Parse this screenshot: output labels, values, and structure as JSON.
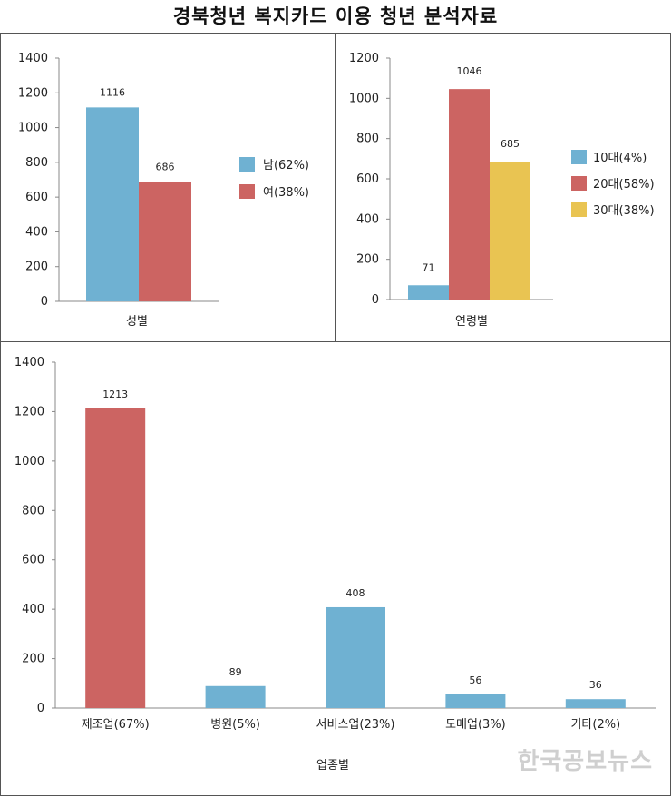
{
  "title": "경북청년 복지카드 이용 청년 분석자료",
  "watermark": "한국공보뉴스",
  "colors": {
    "blue": "#6fb1d2",
    "red": "#cc6462",
    "yellow": "#e9c452",
    "axis": "#888888"
  },
  "chart_data": [
    {
      "type": "bar",
      "xlabel": "성별",
      "ylim": [
        0,
        1400
      ],
      "yticks": [
        0,
        200,
        400,
        600,
        800,
        1000,
        1200,
        1400
      ],
      "series": [
        {
          "name": "남(62%)",
          "values": [
            1116
          ],
          "color": "#6fb1d2"
        },
        {
          "name": "여(38%)",
          "values": [
            686
          ],
          "color": "#cc6462"
        }
      ],
      "legend": "right"
    },
    {
      "type": "bar",
      "xlabel": "연령별",
      "ylim": [
        0,
        1200
      ],
      "yticks": [
        0,
        200,
        400,
        600,
        800,
        1000,
        1200
      ],
      "series": [
        {
          "name": "10대(4%)",
          "values": [
            71
          ],
          "color": "#6fb1d2"
        },
        {
          "name": "20대(58%)",
          "values": [
            1046
          ],
          "color": "#cc6462"
        },
        {
          "name": "30대(38%)",
          "values": [
            685
          ],
          "color": "#e9c452"
        }
      ],
      "legend": "right"
    },
    {
      "type": "bar",
      "xlabel": "업종별",
      "ylim": [
        0,
        1400
      ],
      "yticks": [
        0,
        200,
        400,
        600,
        800,
        1000,
        1200,
        1400
      ],
      "categories": [
        "제조업(67%)",
        "병원(5%)",
        "서비스업(23%)",
        "도매업(3%)",
        "기타(2%)"
      ],
      "values": [
        1213,
        89,
        408,
        56,
        36
      ],
      "colors": [
        "#cc6462",
        "#6fb1d2",
        "#6fb1d2",
        "#6fb1d2",
        "#6fb1d2"
      ]
    }
  ]
}
